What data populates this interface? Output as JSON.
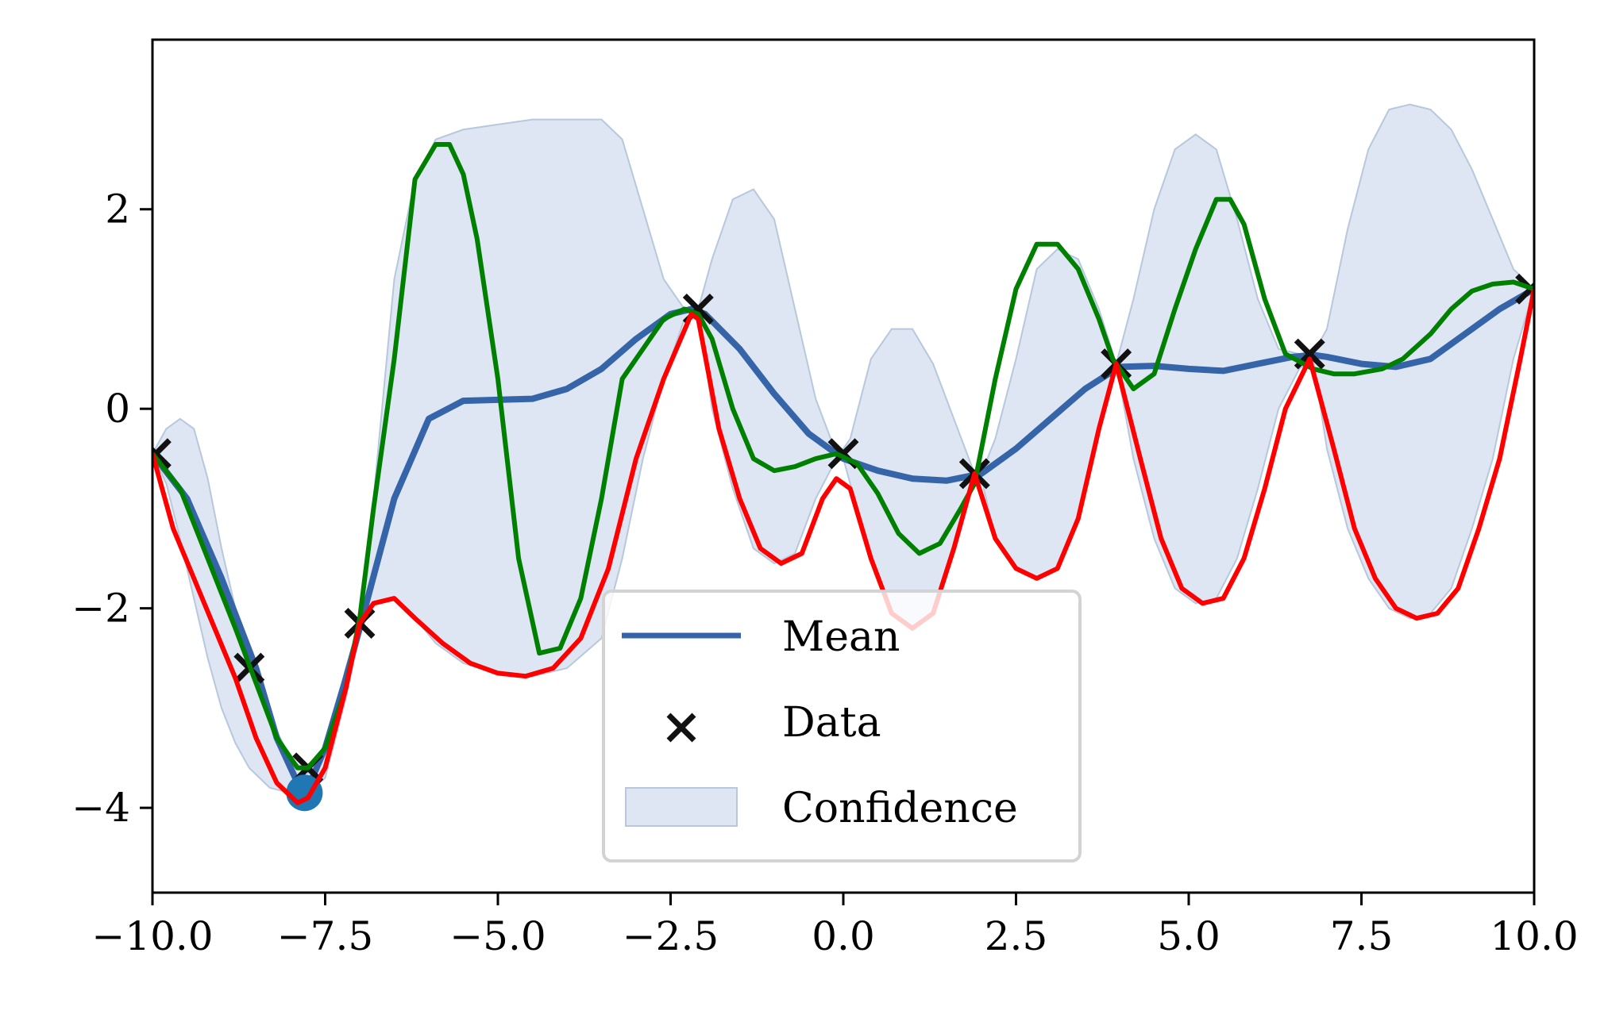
{
  "chart_data": {
    "type": "line",
    "title": "",
    "xlabel": "",
    "ylabel": "",
    "xlim": [
      -10,
      10
    ],
    "ylim": [
      -4.85,
      3.7
    ],
    "x_ticks": [
      -10,
      -7.5,
      -5,
      -2.5,
      0,
      2.5,
      5,
      7.5,
      10
    ],
    "x_tick_labels": [
      "−10.0",
      "−7.5",
      "−5.0",
      "−2.5",
      "0.0",
      "2.5",
      "5.0",
      "7.5",
      "10.0"
    ],
    "y_ticks": [
      -4,
      -2,
      0,
      2
    ],
    "y_tick_labels": [
      "−4",
      "−2",
      "0",
      "2"
    ],
    "grid": false,
    "legend": {
      "position": "lower-center",
      "entries": [
        "Mean",
        "Data",
        "Confidence"
      ]
    },
    "colors": {
      "mean": "#3565a8",
      "confidence_fill": "#dde6f2",
      "confidence_edge": "#b7c8dd",
      "sample_green": "#008000",
      "sample_red": "#ff0000",
      "data_marker": "#111111",
      "best_point": "#1f77b4"
    },
    "series": [
      {
        "name": "Mean",
        "x": [
          -10,
          -9.5,
          -9,
          -8.5,
          -8.2,
          -7.9,
          -7.75,
          -7.5,
          -7.2,
          -7,
          -6.5,
          -6,
          -5.5,
          -5,
          -4.5,
          -4,
          -3.5,
          -3,
          -2.5,
          -2.2,
          -2,
          -1.5,
          -1,
          -0.5,
          0,
          0.5,
          1,
          1.5,
          2,
          2.5,
          3,
          3.5,
          4,
          4.5,
          5,
          5.5,
          6,
          6.5,
          6.8,
          7,
          7.5,
          8,
          8.5,
          9,
          9.5,
          10
        ],
        "y": [
          -0.45,
          -0.9,
          -1.7,
          -2.6,
          -3.3,
          -3.75,
          -3.8,
          -3.4,
          -2.7,
          -2.2,
          -0.9,
          -0.1,
          0.08,
          0.09,
          0.1,
          0.2,
          0.4,
          0.7,
          0.95,
          1.0,
          0.95,
          0.6,
          0.15,
          -0.25,
          -0.5,
          -0.62,
          -0.7,
          -0.72,
          -0.65,
          -0.4,
          -0.1,
          0.2,
          0.42,
          0.43,
          0.4,
          0.38,
          0.45,
          0.52,
          0.54,
          0.52,
          0.45,
          0.42,
          0.5,
          0.75,
          1.0,
          1.2
        ]
      },
      {
        "name": "",
        "x": [
          -10,
          -9.6,
          -9.2,
          -8.8,
          -8.5,
          -8.2,
          -7.9,
          -7.75,
          -7.5,
          -7.2,
          -7,
          -6.8,
          -6.5,
          -6.2,
          -5.9,
          -5.7,
          -5.5,
          -5.3,
          -5,
          -4.7,
          -4.4,
          -4.1,
          -3.8,
          -3.5,
          -3.2,
          -2.9,
          -2.6,
          -2.3,
          -2.1,
          -1.9,
          -1.6,
          -1.3,
          -1,
          -0.7,
          -0.4,
          -0.1,
          0.2,
          0.5,
          0.8,
          1.1,
          1.4,
          1.7,
          1.9,
          2.2,
          2.5,
          2.8,
          3.1,
          3.4,
          3.7,
          3.9,
          4.2,
          4.5,
          4.8,
          5.1,
          5.4,
          5.6,
          5.8,
          6.1,
          6.4,
          6.8,
          7.1,
          7.4,
          7.8,
          8.1,
          8.5,
          8.8,
          9.1,
          9.4,
          9.7,
          10
        ],
        "y": [
          -0.45,
          -0.8,
          -1.5,
          -2.2,
          -2.75,
          -3.3,
          -3.6,
          -3.6,
          -3.4,
          -2.8,
          -2.1,
          -1.0,
          0.5,
          2.3,
          2.65,
          2.65,
          2.35,
          1.7,
          0.3,
          -1.5,
          -2.45,
          -2.4,
          -1.9,
          -0.9,
          0.3,
          0.6,
          0.9,
          1.0,
          0.95,
          0.7,
          0.0,
          -0.5,
          -0.62,
          -0.58,
          -0.5,
          -0.45,
          -0.55,
          -0.85,
          -1.25,
          -1.45,
          -1.35,
          -1.0,
          -0.75,
          0.3,
          1.2,
          1.65,
          1.65,
          1.4,
          0.9,
          0.5,
          0.2,
          0.35,
          1.0,
          1.6,
          2.1,
          2.1,
          1.85,
          1.1,
          0.55,
          0.4,
          0.35,
          0.35,
          0.4,
          0.5,
          0.75,
          1.0,
          1.18,
          1.25,
          1.27,
          1.2
        ]
      },
      {
        "name": "",
        "x": [
          -10,
          -9.7,
          -9.4,
          -9.1,
          -8.8,
          -8.5,
          -8.2,
          -7.9,
          -7.75,
          -7.5,
          -7.2,
          -7,
          -6.8,
          -6.5,
          -6.2,
          -5.8,
          -5.4,
          -5,
          -4.6,
          -4.2,
          -3.8,
          -3.4,
          -3,
          -2.6,
          -2.2,
          -2.1,
          -1.8,
          -1.5,
          -1.2,
          -0.9,
          -0.6,
          -0.3,
          -0.1,
          0.1,
          0.4,
          0.7,
          1.0,
          1.3,
          1.6,
          1.9,
          2.2,
          2.5,
          2.8,
          3.1,
          3.4,
          3.7,
          3.95,
          4.3,
          4.6,
          4.9,
          5.2,
          5.5,
          5.8,
          6.1,
          6.4,
          6.75,
          7.1,
          7.4,
          7.7,
          8.0,
          8.3,
          8.6,
          8.9,
          9.2,
          9.5,
          9.8,
          10
        ],
        "y": [
          -0.45,
          -1.2,
          -1.7,
          -2.2,
          -2.7,
          -3.3,
          -3.75,
          -3.95,
          -3.9,
          -3.6,
          -2.8,
          -2.15,
          -1.95,
          -1.9,
          -2.1,
          -2.35,
          -2.55,
          -2.65,
          -2.68,
          -2.6,
          -2.3,
          -1.6,
          -0.5,
          0.3,
          0.95,
          0.9,
          -0.2,
          -0.9,
          -1.4,
          -1.55,
          -1.45,
          -0.9,
          -0.7,
          -0.8,
          -1.5,
          -2.05,
          -2.2,
          -2.05,
          -1.4,
          -0.65,
          -1.3,
          -1.6,
          -1.7,
          -1.6,
          -1.1,
          -0.2,
          0.45,
          -0.5,
          -1.3,
          -1.8,
          -1.95,
          -1.9,
          -1.5,
          -0.8,
          0.0,
          0.5,
          -0.4,
          -1.2,
          -1.7,
          -2.0,
          -2.1,
          -2.05,
          -1.8,
          -1.2,
          -0.5,
          0.5,
          1.2
        ]
      }
    ],
    "confidence": {
      "name": "Confidence",
      "x": [
        -10,
        -9.8,
        -9.6,
        -9.4,
        -9.2,
        -9,
        -8.8,
        -8.6,
        -8.3,
        -8.0,
        -7.75,
        -7.5,
        -7.2,
        -7,
        -6.8,
        -6.5,
        -6.2,
        -5.9,
        -5.5,
        -5.0,
        -4.5,
        -4.0,
        -3.5,
        -3.2,
        -2.9,
        -2.6,
        -2.3,
        -2.1,
        -1.9,
        -1.6,
        -1.3,
        -1.0,
        -0.7,
        -0.4,
        -0.1,
        0,
        0.1,
        0.4,
        0.7,
        1.0,
        1.3,
        1.6,
        1.9,
        2.0,
        2.2,
        2.5,
        2.8,
        3.1,
        3.4,
        3.7,
        3.95,
        4.2,
        4.5,
        4.8,
        5.1,
        5.4,
        5.7,
        6.0,
        6.3,
        6.6,
        6.8,
        7.0,
        7.3,
        7.6,
        7.9,
        8.2,
        8.5,
        8.8,
        9.1,
        9.4,
        9.7,
        10
      ],
      "upper": [
        -0.45,
        -0.2,
        -0.1,
        -0.2,
        -0.7,
        -1.4,
        -2.0,
        -2.6,
        -3.1,
        -3.5,
        -3.65,
        -3.4,
        -2.6,
        -2.15,
        -0.9,
        1.3,
        2.3,
        2.7,
        2.8,
        2.85,
        2.9,
        2.9,
        2.9,
        2.7,
        2.0,
        1.3,
        1.0,
        1.0,
        1.5,
        2.1,
        2.2,
        1.9,
        1.0,
        0.1,
        -0.45,
        -0.4,
        -0.3,
        0.5,
        0.8,
        0.8,
        0.45,
        -0.1,
        -0.65,
        -0.65,
        -0.3,
        0.5,
        1.4,
        1.6,
        1.5,
        1.0,
        0.45,
        1.1,
        2.0,
        2.6,
        2.75,
        2.6,
        1.9,
        1.1,
        0.6,
        0.55,
        0.55,
        0.8,
        1.8,
        2.6,
        3.0,
        3.05,
        3.0,
        2.8,
        2.4,
        1.9,
        1.4,
        1.2
      ],
      "lower": [
        -0.45,
        -0.75,
        -1.3,
        -1.9,
        -2.5,
        -3.0,
        -3.35,
        -3.6,
        -3.8,
        -3.85,
        -3.85,
        -3.7,
        -2.9,
        -2.25,
        -1.95,
        -1.9,
        -2.1,
        -2.35,
        -2.55,
        -2.65,
        -2.68,
        -2.6,
        -2.3,
        -1.5,
        -0.5,
        0.3,
        0.9,
        1.0,
        0.0,
        -0.8,
        -1.4,
        -1.55,
        -1.45,
        -0.9,
        -0.5,
        -0.5,
        -0.75,
        -1.5,
        -2.05,
        -2.2,
        -2.05,
        -1.4,
        -0.7,
        -0.7,
        -1.3,
        -1.6,
        -1.7,
        -1.6,
        -1.1,
        -0.2,
        0.45,
        -0.5,
        -1.3,
        -1.8,
        -1.95,
        -1.9,
        -1.5,
        -0.8,
        0.0,
        0.4,
        0.5,
        -0.4,
        -1.2,
        -1.7,
        -2.0,
        -2.1,
        -2.05,
        -1.8,
        -1.2,
        -0.5,
        0.5,
        1.2
      ]
    },
    "data_points": {
      "name": "Data",
      "x": [
        -9.95,
        -8.6,
        -7.75,
        -7.0,
        -2.1,
        0.0,
        1.9,
        3.95,
        6.75,
        9.95
      ],
      "y": [
        -0.45,
        -2.6,
        -3.6,
        -2.15,
        1.0,
        -0.45,
        -0.65,
        0.45,
        0.55,
        1.2
      ]
    },
    "best_point": {
      "x": -7.8,
      "y": -3.85
    }
  }
}
